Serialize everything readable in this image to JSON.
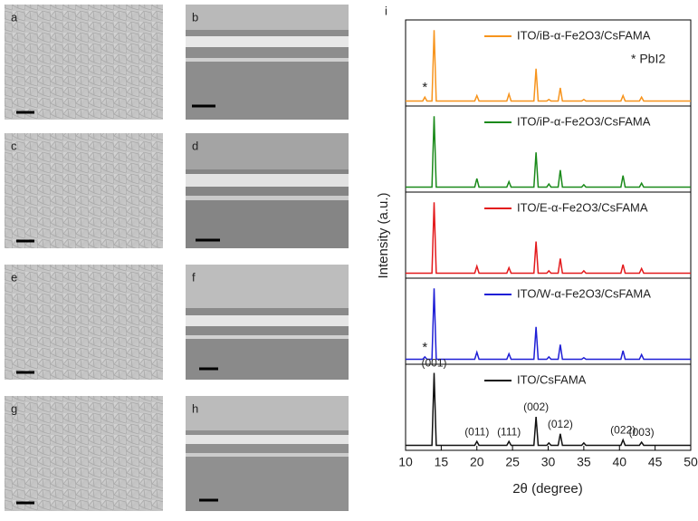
{
  "panels": [
    "a",
    "b",
    "c",
    "d",
    "e",
    "f",
    "g",
    "h"
  ],
  "chart_data": {
    "type": "line",
    "panel_label": "i",
    "xlabel": "2θ (degree)",
    "ylabel": "Intensity (a.u.)",
    "xlim": [
      10,
      50
    ],
    "xticks": [
      10,
      15,
      20,
      25,
      30,
      35,
      40,
      45,
      50
    ],
    "ylim": [
      0,
      100
    ],
    "x": [
      10,
      12.4,
      12.7,
      13.0,
      13.7,
      14.0,
      14.3,
      19.7,
      20,
      20.3,
      24.2,
      24.5,
      24.8,
      28.0,
      28.3,
      28.6,
      29.8,
      30.1,
      30.4,
      31.4,
      31.7,
      32.0,
      34.7,
      35.0,
      35.3,
      40.2,
      40.5,
      40.8,
      42.8,
      43.1,
      43.4,
      50
    ],
    "series": [
      {
        "name": "ITO/iB-α-Fe2O3/CsFAMA",
        "color": "#f7941d",
        "values": [
          3,
          3,
          8,
          3,
          3,
          95,
          3,
          3,
          10,
          3,
          3,
          12,
          3,
          3,
          45,
          3,
          3,
          5,
          3,
          3,
          20,
          3,
          3,
          5,
          3,
          3,
          10,
          3,
          3,
          8,
          3,
          3
        ]
      },
      {
        "name": "ITO/iP-α-Fe2O3/CsFAMA",
        "color": "#1a8a1a",
        "values": [
          3,
          3,
          3,
          3,
          3,
          95,
          3,
          3,
          14,
          3,
          3,
          10,
          3,
          3,
          48,
          3,
          3,
          7,
          3,
          3,
          25,
          3,
          3,
          6,
          3,
          3,
          18,
          3,
          3,
          8,
          3,
          3
        ]
      },
      {
        "name": "ITO/E-α-Fe2O3/CsFAMA",
        "color": "#e31a1c",
        "values": [
          3,
          3,
          3,
          3,
          3,
          95,
          3,
          3,
          12,
          3,
          3,
          10,
          3,
          3,
          44,
          3,
          3,
          6,
          3,
          3,
          22,
          3,
          3,
          6,
          3,
          3,
          14,
          3,
          3,
          9,
          3,
          3
        ]
      },
      {
        "name": "ITO/W-α-Fe2O3/CsFAMA",
        "color": "#1f1fd6",
        "values": [
          3,
          3,
          6,
          3,
          3,
          95,
          3,
          3,
          12,
          3,
          3,
          10,
          3,
          3,
          45,
          3,
          3,
          6,
          3,
          3,
          22,
          3,
          3,
          5,
          3,
          3,
          14,
          3,
          3,
          9,
          3,
          3
        ]
      },
      {
        "name": "ITO/CsFAMA",
        "color": "#111111",
        "values": [
          3,
          3,
          3,
          3,
          3,
          97,
          3,
          3,
          8,
          3,
          3,
          8,
          3,
          3,
          40,
          3,
          3,
          6,
          3,
          3,
          18,
          3,
          3,
          6,
          3,
          3,
          10,
          3,
          3,
          7,
          3,
          3
        ]
      }
    ],
    "pbi2_note": "* PbI2",
    "stars": [
      {
        "text": "*",
        "series": 0,
        "x": 12.7
      },
      {
        "text": "*",
        "series": 3,
        "x": 12.7
      }
    ],
    "peak_labels": [
      {
        "text": "(001)",
        "x": 14.0
      },
      {
        "text": "(011)",
        "x": 20
      },
      {
        "text": "(111)",
        "x": 24.5
      },
      {
        "text": "(002)",
        "x": 28.3
      },
      {
        "text": "(012)",
        "x": 31.7
      },
      {
        "text": "(022)",
        "x": 40.5
      },
      {
        "text": "(003)",
        "x": 43.1
      }
    ]
  }
}
